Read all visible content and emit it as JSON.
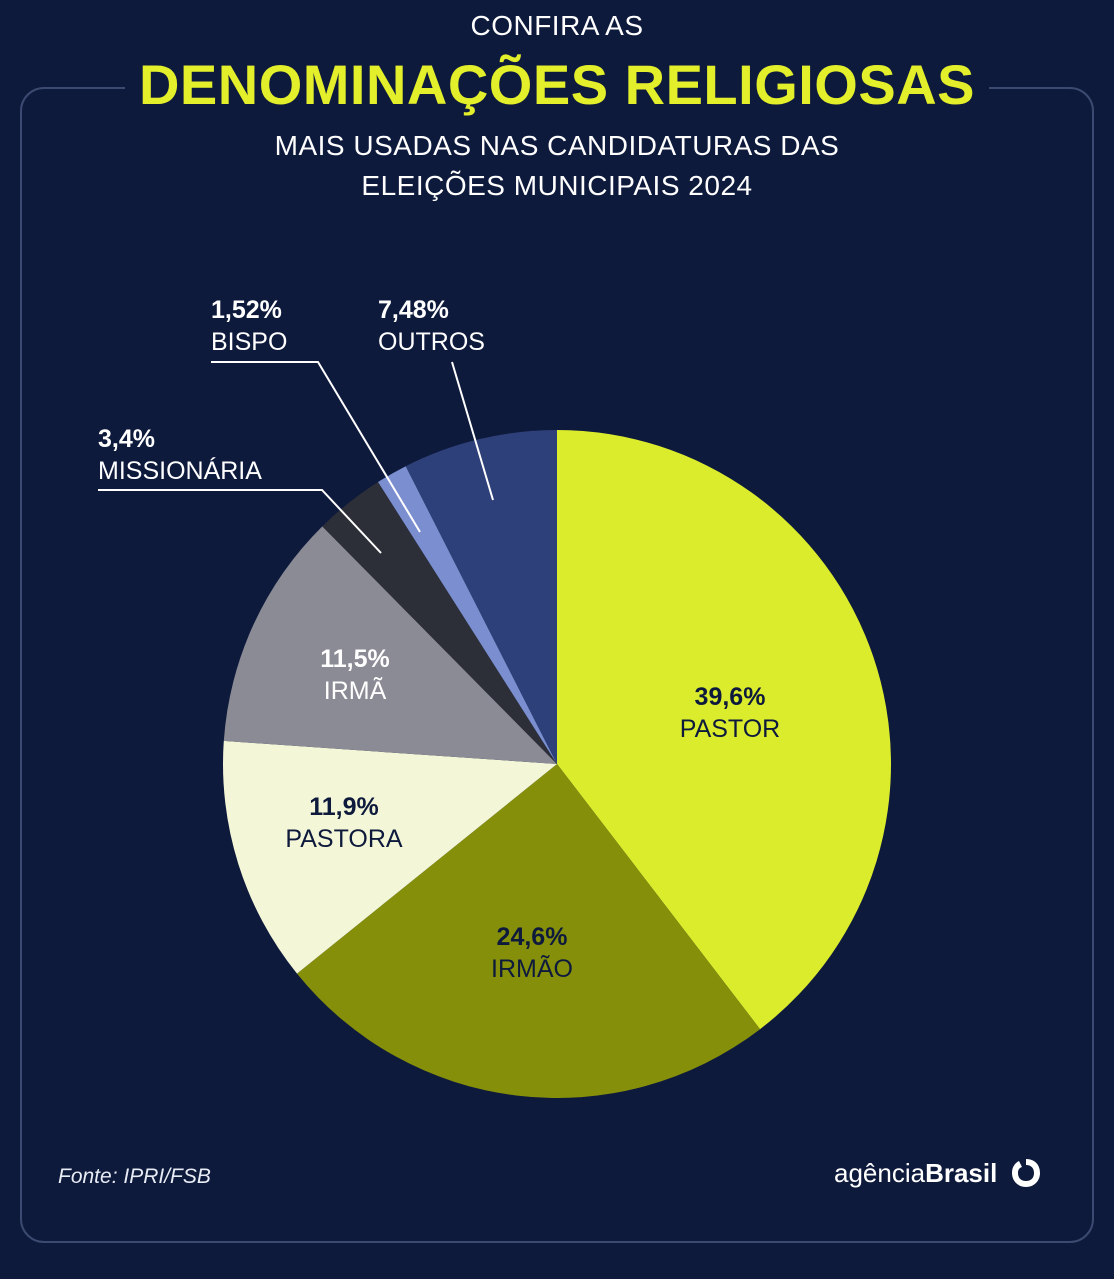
{
  "header": {
    "kicker": "CONFIRA AS",
    "title": "DENOMINAÇÕES RELIGIOSAS",
    "subtitle_line1": "MAIS USADAS NAS CANDIDATURAS DAS",
    "subtitle_line2": "ELEIÇÕES MUNICIPAIS 2024"
  },
  "chart_data": {
    "type": "pie",
    "title": "DENOMINAÇÕES RELIGIOSAS",
    "slices": [
      {
        "label": "PASTOR",
        "value": 39.6,
        "display": "39,6%",
        "color": "#dbec2d",
        "text_color": "#0e1a3c"
      },
      {
        "label": "IRMÃO",
        "value": 24.6,
        "display": "24,6%",
        "color": "#858f0a",
        "text_color": "#0e1a3c"
      },
      {
        "label": "PASTORA",
        "value": 11.9,
        "display": "11,9%",
        "color": "#f4f6d8",
        "text_color": "#0e1a3c"
      },
      {
        "label": "IRMÃ",
        "value": 11.5,
        "display": "11,5%",
        "color": "#8a8b95",
        "text_color": "#ffffff"
      },
      {
        "label": "MISSIONÁRIA",
        "value": 3.4,
        "display": "3,4%",
        "color": "#2d2f38",
        "text_color": "#ffffff"
      },
      {
        "label": "BISPO",
        "value": 1.52,
        "display": "1,52%",
        "color": "#7b8fd0",
        "text_color": "#ffffff"
      },
      {
        "label": "OUTROS",
        "value": 7.48,
        "display": "7,48%",
        "color": "#2e4079",
        "text_color": "#ffffff"
      }
    ]
  },
  "footer": {
    "source": "Fonte:  IPRI/FSB",
    "brand_light": "agência",
    "brand_bold": "Brasil",
    "brand_icon": "brasil-logo-icon"
  }
}
